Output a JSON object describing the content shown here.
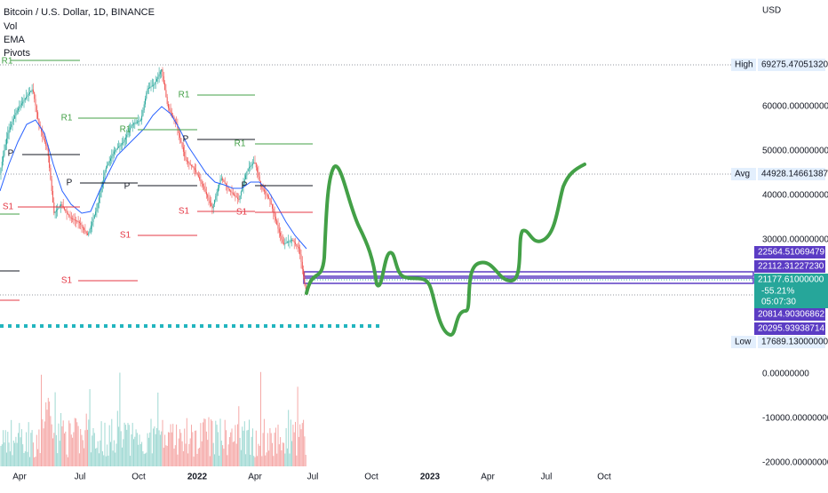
{
  "header": {
    "symbol": "Bitcoin / U.S. Dollar, 1D, BINANCE",
    "indicators": [
      "Vol",
      "EMA",
      "Pivots"
    ],
    "currency": "USD"
  },
  "price_axis": {
    "ticks": [
      "60000.00000000",
      "50000.00000000",
      "40000.00000000",
      "30000.00000000",
      "0.00000000",
      "-10000.00000000",
      "-20000.00000000"
    ],
    "high": {
      "label": "High",
      "value": "69275.47051320"
    },
    "avg": {
      "label": "Avg",
      "value": "44928.14661387"
    },
    "levels": [
      "22564.51069479",
      "22112.31227230",
      "20814.90306862",
      "20295.93938714"
    ],
    "last": {
      "price": "21177.61000000",
      "change": "-55.21%",
      "countdown": "05:07:30"
    },
    "low": {
      "label": "Low",
      "value": "17689.13000000"
    }
  },
  "time_axis": [
    "Apr",
    "Jul",
    "Oct",
    "2022",
    "Apr",
    "Jul",
    "Oct",
    "2023",
    "Apr",
    "Jul",
    "Oct"
  ],
  "pivots": [
    "R1",
    "R1",
    "R1",
    "R1",
    "R1",
    "P",
    "P",
    "P",
    "P",
    "P",
    "S1",
    "S1",
    "S1",
    "S1",
    "S1"
  ]
}
